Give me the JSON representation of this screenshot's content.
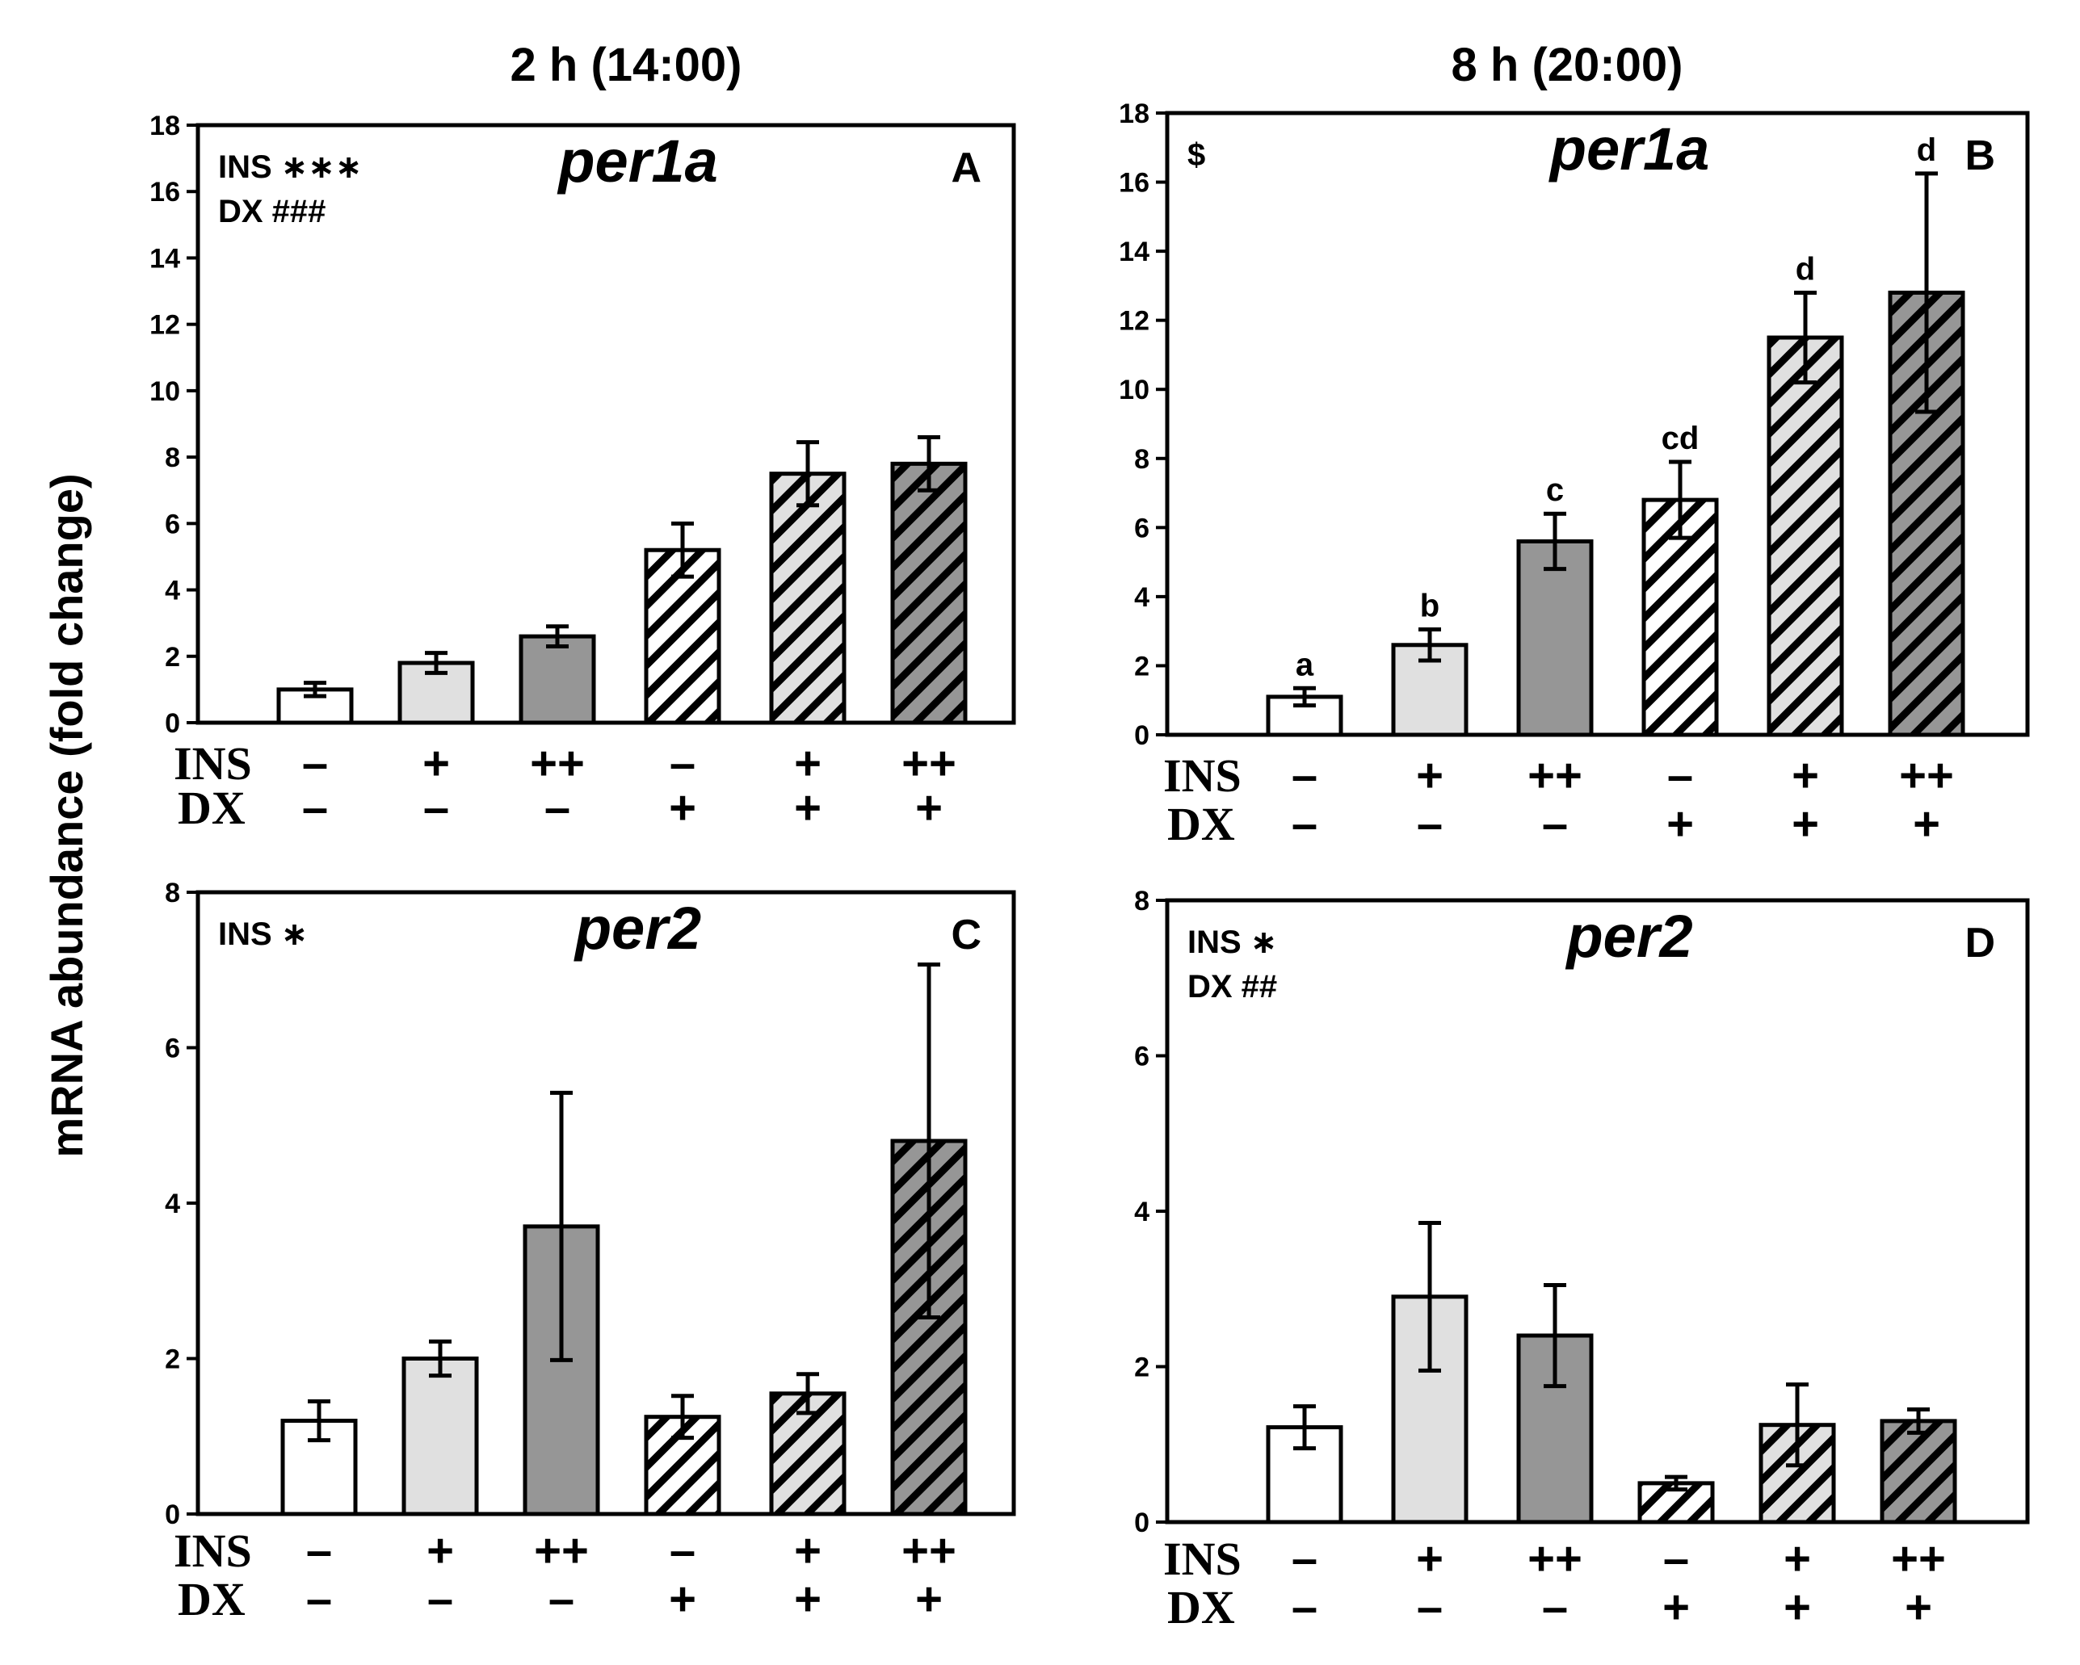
{
  "figure": {
    "column_titles": [
      "2 h (14:00)",
      "8 h (20:00)"
    ],
    "ylabel": "mRNA abundance (fold change)"
  },
  "colors": {
    "white": "#ffffff",
    "light": "#e0e0e0",
    "dark": "#969696",
    "hatch_stroke": "#000000"
  },
  "treatments": {
    "ins_label": "INS",
    "dx_label": "DX",
    "ins": [
      "–",
      "+",
      "++",
      "–",
      "+",
      "++"
    ],
    "dx": [
      "–",
      "–",
      "–",
      "+",
      "+",
      "+"
    ],
    "fills": [
      "white",
      "light",
      "dark",
      "hatch-white",
      "hatch-light",
      "hatch-dark"
    ]
  },
  "chart_data": [
    {
      "id": "A",
      "type": "bar",
      "title": "per1a",
      "panel_letter": "A",
      "ylim": [
        0,
        18
      ],
      "yticks": [
        0,
        2,
        4,
        6,
        8,
        10,
        12,
        14,
        16,
        18
      ],
      "values": [
        1.0,
        1.8,
        2.6,
        5.2,
        7.5,
        7.8
      ],
      "errors": [
        0.2,
        0.3,
        0.3,
        0.8,
        0.95,
        0.8
      ],
      "sig_letters": null,
      "stats": [
        "INS ∗∗∗",
        "DX ###"
      ]
    },
    {
      "id": "B",
      "type": "bar",
      "title": "per1a",
      "panel_letter": "B",
      "ylim": [
        0,
        18
      ],
      "yticks": [
        0,
        2,
        4,
        6,
        8,
        10,
        12,
        14,
        16,
        18
      ],
      "values": [
        1.1,
        2.6,
        5.6,
        6.8,
        11.5,
        12.8
      ],
      "errors": [
        0.25,
        0.45,
        0.8,
        1.1,
        1.3,
        3.45
      ],
      "sig_letters": [
        "a",
        "b",
        "c",
        "cd",
        "d",
        "d"
      ],
      "stats": [
        "$"
      ]
    },
    {
      "id": "C",
      "type": "bar",
      "title": "per2",
      "panel_letter": "C",
      "ylim": [
        0,
        8
      ],
      "yticks": [
        0,
        2,
        4,
        6,
        8
      ],
      "values": [
        1.2,
        2.0,
        3.7,
        1.25,
        1.55,
        4.8
      ],
      "errors": [
        0.25,
        0.22,
        1.72,
        0.27,
        0.25,
        2.27
      ],
      "sig_letters": null,
      "stats": [
        "INS ∗"
      ]
    },
    {
      "id": "D",
      "type": "bar",
      "title": "per2",
      "panel_letter": "D",
      "ylim": [
        0,
        8
      ],
      "yticks": [
        0,
        2,
        4,
        6,
        8
      ],
      "values": [
        1.22,
        2.9,
        2.4,
        0.5,
        1.25,
        1.3
      ],
      "errors": [
        0.27,
        0.95,
        0.65,
        0.08,
        0.52,
        0.15
      ],
      "sig_letters": null,
      "stats": [
        "INS ∗",
        "DX ##"
      ]
    }
  ]
}
